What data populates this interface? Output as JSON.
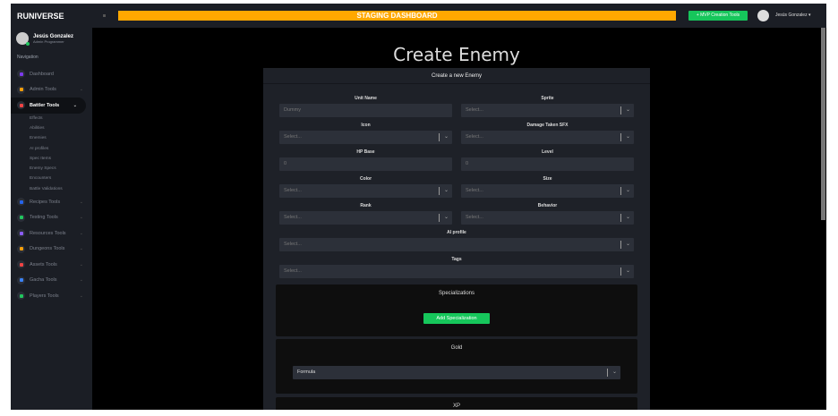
{
  "app": {
    "brand": "RUNIVERSE"
  },
  "user": {
    "name": "Jesús Gonzalez",
    "role": "Admin Programmer"
  },
  "sidebar": {
    "heading": "Navigation",
    "items": [
      {
        "label": "Dashboard",
        "color": "#7c3aed"
      },
      {
        "label": "Admin Tools",
        "color": "#f59e0b"
      },
      {
        "label": "Battler Tools",
        "color": "#ef4444",
        "active": true,
        "children": [
          "Effects",
          "Abilities",
          "Enemies",
          "AI profiles",
          "Spec Items",
          "Enemy Specs",
          "Encounters",
          "Battle Validations"
        ]
      },
      {
        "label": "Recipes Tools",
        "color": "#2563eb"
      },
      {
        "label": "Testing Tools",
        "color": "#22c55e"
      },
      {
        "label": "Resources Tools",
        "color": "#8b5cf6"
      },
      {
        "label": "Dungeons Tools",
        "color": "#f59e0b"
      },
      {
        "label": "Assets Tools",
        "color": "#ef4444"
      },
      {
        "label": "Gacha Tools",
        "color": "#3b82f6"
      },
      {
        "label": "Players Tools",
        "color": "#22c55e"
      }
    ]
  },
  "topbar": {
    "banner": "STAGING DASHBOARD",
    "mvp_button": "+ MVP Creation Tools",
    "user": "Jesús Gonzalez ▾",
    "banner_color": "#ffa800",
    "accent": "#16c65b"
  },
  "page": {
    "title": "Create Enemy",
    "card_title": "Create a new Enemy"
  },
  "form": {
    "unit_name": {
      "label": "Unit Name",
      "value": "Dummy"
    },
    "sprite": {
      "label": "Sprite",
      "placeholder": "Select..."
    },
    "icon": {
      "label": "Icon",
      "placeholder": "Select..."
    },
    "damage_sfx": {
      "label": "Damage Taken SFX",
      "placeholder": "Select..."
    },
    "hp_base": {
      "label": "HP Base",
      "value": "0"
    },
    "level": {
      "label": "Level",
      "value": "0"
    },
    "color": {
      "label": "Color",
      "placeholder": "Select..."
    },
    "size": {
      "label": "Size",
      "placeholder": "Select..."
    },
    "rank": {
      "label": "Rank",
      "placeholder": "Select..."
    },
    "behavior": {
      "label": "Behavior",
      "placeholder": "Select..."
    },
    "ai_profile": {
      "label": "AI profile",
      "placeholder": "Select..."
    },
    "tags": {
      "label": "Tags",
      "placeholder": "Select..."
    }
  },
  "specializations": {
    "title": "Specializations",
    "add_button": "Add Specialization"
  },
  "gold": {
    "title": "Gold",
    "value": "Formula"
  },
  "xp": {
    "title": "XP"
  }
}
